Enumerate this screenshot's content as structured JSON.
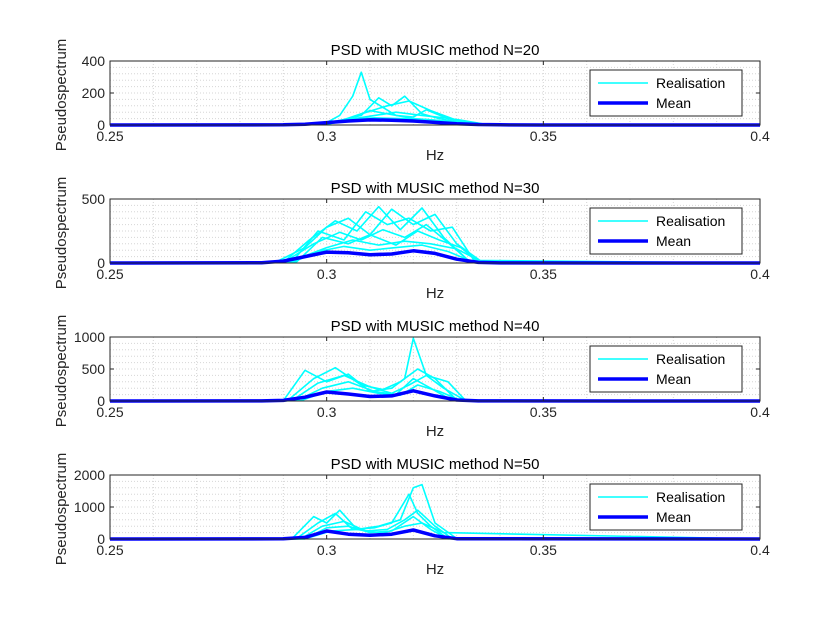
{
  "chart_data": [
    {
      "type": "line",
      "title": "PSD with MUSIC method N=20",
      "xlabel": "Hz",
      "ylabel": "Pseudospectrum",
      "xlim": [
        0.25,
        0.4
      ],
      "ylim": [
        0,
        400
      ],
      "xticks": [
        0.25,
        0.3,
        0.35,
        0.4
      ],
      "xtick_labels": [
        "0.25",
        "0.3",
        "0.35",
        "0.4"
      ],
      "yticks": [
        0,
        200,
        400
      ],
      "ytick_labels": [
        "0",
        "200",
        "400"
      ],
      "grid": true,
      "legend_position": "top-right",
      "legend": [
        {
          "label": "Realisation",
          "color": "#00ffff"
        },
        {
          "label": "Mean",
          "color": "#0000ff"
        }
      ],
      "series": [
        {
          "name": "Realisation",
          "color": "#00ffff",
          "x": [
            0.25,
            0.29,
            0.3,
            0.303,
            0.306,
            0.308,
            0.31,
            0.313,
            0.316,
            0.32,
            0.325,
            0.33,
            0.335,
            0.35,
            0.4
          ],
          "y": [
            0,
            2,
            15,
            60,
            180,
            330,
            160,
            110,
            60,
            40,
            30,
            15,
            3,
            0,
            0
          ]
        },
        {
          "name": "Realisation",
          "color": "#00ffff",
          "x": [
            0.25,
            0.295,
            0.302,
            0.308,
            0.312,
            0.315,
            0.318,
            0.322,
            0.326,
            0.33,
            0.336,
            0.4
          ],
          "y": [
            0,
            3,
            20,
            60,
            170,
            120,
            180,
            70,
            40,
            20,
            2,
            0
          ]
        },
        {
          "name": "Realisation",
          "color": "#00ffff",
          "x": [
            0.25,
            0.295,
            0.303,
            0.308,
            0.314,
            0.319,
            0.324,
            0.33,
            0.336,
            0.4
          ],
          "y": [
            0,
            2,
            25,
            70,
            120,
            150,
            90,
            30,
            3,
            0
          ]
        },
        {
          "name": "Realisation",
          "color": "#00ffff",
          "x": [
            0.25,
            0.298,
            0.305,
            0.31,
            0.316,
            0.32,
            0.323,
            0.328,
            0.334,
            0.4
          ],
          "y": [
            0,
            3,
            40,
            90,
            60,
            50,
            95,
            40,
            4,
            0
          ]
        },
        {
          "name": "Realisation",
          "color": "#00ffff",
          "x": [
            0.25,
            0.297,
            0.304,
            0.31,
            0.316,
            0.322,
            0.327,
            0.331,
            0.337,
            0.4
          ],
          "y": [
            0,
            2,
            30,
            55,
            80,
            60,
            45,
            30,
            3,
            0
          ]
        },
        {
          "name": "Realisation",
          "color": "#00ffff",
          "x": [
            0.25,
            0.3,
            0.306,
            0.311,
            0.317,
            0.323,
            0.329,
            0.335,
            0.4
          ],
          "y": [
            0,
            4,
            35,
            45,
            40,
            35,
            20,
            2,
            0
          ]
        },
        {
          "name": "Mean",
          "color": "#0000ff",
          "x": [
            0.25,
            0.29,
            0.295,
            0.3,
            0.305,
            0.31,
            0.315,
            0.32,
            0.325,
            0.33,
            0.335,
            0.34,
            0.35,
            0.4
          ],
          "y": [
            0,
            1,
            5,
            15,
            25,
            32,
            30,
            25,
            16,
            8,
            3,
            1,
            0,
            0
          ]
        }
      ]
    },
    {
      "type": "line",
      "title": "PSD with MUSIC method N=30",
      "xlabel": "Hz",
      "ylabel": "Pseudospectrum",
      "xlim": [
        0.25,
        0.4
      ],
      "ylim": [
        0,
        500
      ],
      "xticks": [
        0.25,
        0.3,
        0.35,
        0.4
      ],
      "xtick_labels": [
        "0.25",
        "0.3",
        "0.35",
        "0.4"
      ],
      "yticks": [
        0,
        500
      ],
      "ytick_labels": [
        "0",
        "500"
      ],
      "grid": true,
      "legend_position": "top-right",
      "legend": [
        {
          "label": "Realisation",
          "color": "#00ffff"
        },
        {
          "label": "Mean",
          "color": "#0000ff"
        }
      ],
      "series": [
        {
          "name": "Realisation",
          "color": "#00ffff",
          "x": [
            0.25,
            0.288,
            0.295,
            0.3,
            0.305,
            0.31,
            0.315,
            0.32,
            0.325,
            0.33,
            0.336,
            0.4
          ],
          "y": [
            0,
            3,
            120,
            280,
            350,
            220,
            420,
            300,
            380,
            150,
            5,
            0
          ]
        },
        {
          "name": "Realisation",
          "color": "#00ffff",
          "x": [
            0.25,
            0.29,
            0.296,
            0.302,
            0.307,
            0.312,
            0.317,
            0.322,
            0.327,
            0.333,
            0.4
          ],
          "y": [
            0,
            5,
            180,
            330,
            250,
            440,
            260,
            430,
            200,
            10,
            0
          ]
        },
        {
          "name": "Realisation",
          "color": "#00ffff",
          "x": [
            0.25,
            0.292,
            0.298,
            0.304,
            0.309,
            0.314,
            0.319,
            0.324,
            0.329,
            0.334,
            0.4
          ],
          "y": [
            0,
            8,
            250,
            180,
            400,
            300,
            350,
            250,
            280,
            20,
            0
          ]
        },
        {
          "name": "Realisation",
          "color": "#00ffff",
          "x": [
            0.25,
            0.29,
            0.297,
            0.303,
            0.308,
            0.313,
            0.318,
            0.323,
            0.328,
            0.333,
            0.4
          ],
          "y": [
            0,
            4,
            150,
            240,
            180,
            260,
            200,
            300,
            160,
            10,
            0
          ]
        },
        {
          "name": "Realisation",
          "color": "#00ffff",
          "x": [
            0.25,
            0.293,
            0.299,
            0.305,
            0.31,
            0.316,
            0.321,
            0.326,
            0.331,
            0.335,
            0.4
          ],
          "y": [
            0,
            6,
            200,
            150,
            220,
            140,
            250,
            180,
            120,
            8,
            0
          ]
        },
        {
          "name": "Realisation",
          "color": "#00ffff",
          "x": [
            0.25,
            0.291,
            0.3,
            0.306,
            0.312,
            0.318,
            0.324,
            0.33,
            0.336,
            0.4
          ],
          "y": [
            0,
            5,
            120,
            180,
            140,
            170,
            150,
            110,
            5,
            0
          ]
        },
        {
          "name": "Realisation",
          "color": "#00ffff",
          "x": [
            0.25,
            0.292,
            0.298,
            0.304,
            0.31,
            0.316,
            0.322,
            0.328,
            0.334,
            0.4
          ],
          "y": [
            0,
            4,
            90,
            130,
            100,
            120,
            140,
            90,
            6,
            0
          ]
        },
        {
          "name": "Mean",
          "color": "#0000ff",
          "x": [
            0.25,
            0.285,
            0.29,
            0.295,
            0.3,
            0.305,
            0.31,
            0.315,
            0.32,
            0.325,
            0.33,
            0.335,
            0.34,
            0.4
          ],
          "y": [
            0,
            2,
            15,
            50,
            85,
            80,
            65,
            70,
            95,
            75,
            30,
            5,
            1,
            0
          ]
        }
      ]
    },
    {
      "type": "line",
      "title": "PSD with MUSIC method N=40",
      "xlabel": "Hz",
      "ylabel": "Pseudospectrum",
      "xlim": [
        0.25,
        0.4
      ],
      "ylim": [
        0,
        1000
      ],
      "xticks": [
        0.25,
        0.3,
        0.35,
        0.4
      ],
      "xtick_labels": [
        "0.25",
        "0.3",
        "0.35",
        "0.4"
      ],
      "yticks": [
        0,
        500,
        1000
      ],
      "ytick_labels": [
        "0",
        "500",
        "1000"
      ],
      "grid": true,
      "legend_position": "top-right",
      "legend": [
        {
          "label": "Realisation",
          "color": "#00ffff"
        },
        {
          "label": "Mean",
          "color": "#0000ff"
        }
      ],
      "series": [
        {
          "name": "Realisation",
          "color": "#00ffff",
          "x": [
            0.25,
            0.29,
            0.295,
            0.3,
            0.305,
            0.31,
            0.315,
            0.318,
            0.32,
            0.323,
            0.327,
            0.332,
            0.4
          ],
          "y": [
            0,
            5,
            480,
            300,
            420,
            150,
            200,
            350,
            980,
            400,
            200,
            10,
            0
          ]
        },
        {
          "name": "Realisation",
          "color": "#00ffff",
          "x": [
            0.25,
            0.291,
            0.297,
            0.302,
            0.308,
            0.313,
            0.317,
            0.321,
            0.325,
            0.33,
            0.4
          ],
          "y": [
            0,
            8,
            350,
            520,
            250,
            180,
            300,
            500,
            350,
            15,
            0
          ]
        },
        {
          "name": "Realisation",
          "color": "#00ffff",
          "x": [
            0.25,
            0.292,
            0.298,
            0.304,
            0.31,
            0.315,
            0.319,
            0.323,
            0.328,
            0.332,
            0.4
          ],
          "y": [
            0,
            6,
            280,
            400,
            220,
            120,
            250,
            400,
            300,
            12,
            0
          ]
        },
        {
          "name": "Realisation",
          "color": "#00ffff",
          "x": [
            0.25,
            0.293,
            0.299,
            0.305,
            0.311,
            0.316,
            0.32,
            0.324,
            0.329,
            0.4
          ],
          "y": [
            0,
            5,
            200,
            300,
            150,
            100,
            350,
            200,
            10,
            0
          ]
        },
        {
          "name": "Realisation",
          "color": "#00ffff",
          "x": [
            0.25,
            0.294,
            0.3,
            0.306,
            0.312,
            0.317,
            0.321,
            0.326,
            0.331,
            0.4
          ],
          "y": [
            0,
            4,
            150,
            200,
            120,
            90,
            250,
            150,
            8,
            0
          ]
        },
        {
          "name": "Mean",
          "color": "#0000ff",
          "x": [
            0.25,
            0.285,
            0.29,
            0.295,
            0.3,
            0.305,
            0.31,
            0.315,
            0.32,
            0.325,
            0.33,
            0.335,
            0.4
          ],
          "y": [
            0,
            2,
            10,
            60,
            140,
            110,
            70,
            80,
            160,
            80,
            15,
            2,
            0
          ]
        }
      ]
    },
    {
      "type": "line",
      "title": "PSD with MUSIC method N=50",
      "xlabel": "Hz",
      "ylabel": "Pseudospectrum",
      "xlim": [
        0.25,
        0.4
      ],
      "ylim": [
        0,
        2000
      ],
      "xticks": [
        0.25,
        0.3,
        0.35,
        0.4
      ],
      "xtick_labels": [
        "0.25",
        "0.3",
        "0.35",
        "0.4"
      ],
      "yticks": [
        0,
        1000,
        2000
      ],
      "ytick_labels": [
        "0",
        "1000",
        "2000"
      ],
      "grid": true,
      "legend_position": "top-right",
      "legend": [
        {
          "label": "Realisation",
          "color": "#00ffff"
        },
        {
          "label": "Mean",
          "color": "#0000ff"
        }
      ],
      "series": [
        {
          "name": "Realisation",
          "color": "#00ffff",
          "x": [
            0.25,
            0.292,
            0.297,
            0.3,
            0.303,
            0.307,
            0.312,
            0.317,
            0.32,
            0.322,
            0.325,
            0.33,
            0.4
          ],
          "y": [
            0,
            10,
            700,
            500,
            900,
            300,
            400,
            600,
            1600,
            1700,
            500,
            15,
            0
          ]
        },
        {
          "name": "Realisation",
          "color": "#00ffff",
          "x": [
            0.25,
            0.293,
            0.298,
            0.302,
            0.306,
            0.311,
            0.315,
            0.319,
            0.321,
            0.324,
            0.328,
            0.4
          ],
          "y": [
            0,
            8,
            500,
            800,
            300,
            350,
            500,
            1400,
            800,
            400,
            10,
            0
          ]
        },
        {
          "name": "Realisation",
          "color": "#00ffff",
          "x": [
            0.25,
            0.294,
            0.299,
            0.304,
            0.309,
            0.314,
            0.318,
            0.321,
            0.325,
            0.329,
            0.4
          ],
          "y": [
            0,
            6,
            400,
            550,
            250,
            300,
            600,
            900,
            400,
            8,
            0
          ]
        },
        {
          "name": "Realisation",
          "color": "#00ffff",
          "x": [
            0.25,
            0.295,
            0.3,
            0.305,
            0.31,
            0.315,
            0.32,
            0.324,
            0.328,
            0.4
          ],
          "y": [
            0,
            5,
            350,
            400,
            200,
            250,
            700,
            300,
            6,
            0
          ]
        },
        {
          "name": "Realisation",
          "color": "#00ffff",
          "x": [
            0.25,
            0.295,
            0.301,
            0.307,
            0.313,
            0.318,
            0.322,
            0.327,
            0.4
          ],
          "y": [
            0,
            4,
            250,
            300,
            180,
            400,
            500,
            200,
            0
          ]
        },
        {
          "name": "Mean",
          "color": "#0000ff",
          "x": [
            0.25,
            0.29,
            0.295,
            0.3,
            0.305,
            0.31,
            0.315,
            0.32,
            0.325,
            0.33,
            0.4
          ],
          "y": [
            0,
            5,
            50,
            250,
            150,
            120,
            150,
            280,
            100,
            10,
            0
          ]
        }
      ]
    }
  ]
}
